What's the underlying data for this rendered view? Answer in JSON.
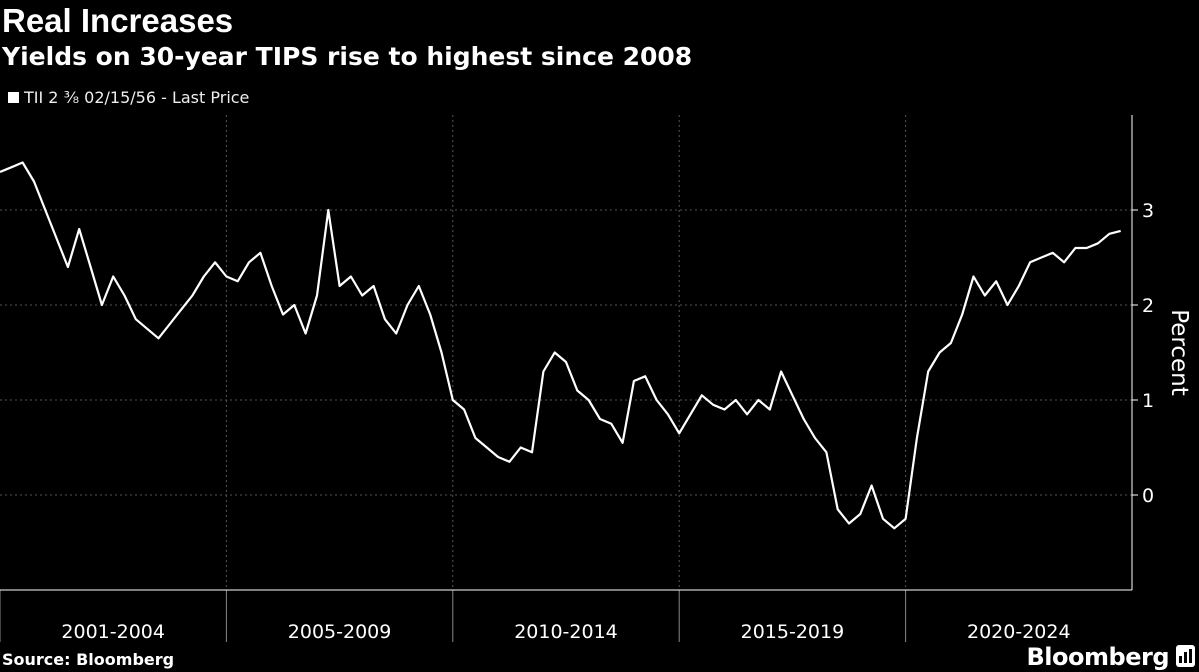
{
  "chart_data": {
    "type": "line",
    "title": "Real Increases",
    "subtitle": "Yields on 30-year TIPS rise to highest since 2008",
    "legend": [
      {
        "name": "TII 2 ³⁄₈ 02/15/56 - Last Price",
        "color": "#ffffff"
      }
    ],
    "ylabel": "Percent",
    "ylim": [
      -1,
      4
    ],
    "yticks": [
      0,
      1,
      2,
      3
    ],
    "xlim": [
      2001.0,
      2026.0
    ],
    "x_categories": [
      {
        "label": "2001-2004",
        "start": 2001,
        "end": 2006
      },
      {
        "label": "2005-2009",
        "start": 2006,
        "end": 2011
      },
      {
        "label": "2010-2014",
        "start": 2011,
        "end": 2016
      },
      {
        "label": "2015-2019",
        "start": 2016,
        "end": 2021
      },
      {
        "label": "2020-2024",
        "start": 2021,
        "end": 2026
      }
    ],
    "grid": true,
    "legend_position": "top-left",
    "series": [
      {
        "name": "TII 2 ³⁄₈ 02/15/56 - Last Price",
        "color": "#ffffff",
        "x": [
          2001.0,
          2001.25,
          2001.5,
          2001.75,
          2002.0,
          2002.25,
          2002.5,
          2002.75,
          2003.0,
          2003.25,
          2003.5,
          2003.75,
          2004.0,
          2004.25,
          2004.5,
          2004.75,
          2005.0,
          2005.25,
          2005.5,
          2005.75,
          2006.0,
          2006.25,
          2006.5,
          2006.75,
          2007.0,
          2007.25,
          2007.5,
          2007.75,
          2008.0,
          2008.25,
          2008.5,
          2008.75,
          2009.0,
          2009.25,
          2009.5,
          2009.75,
          2010.0,
          2010.25,
          2010.5,
          2010.75,
          2011.0,
          2011.25,
          2011.5,
          2011.75,
          2012.0,
          2012.25,
          2012.5,
          2012.75,
          2013.0,
          2013.25,
          2013.5,
          2013.75,
          2014.0,
          2014.25,
          2014.5,
          2014.75,
          2015.0,
          2015.25,
          2015.5,
          2015.75,
          2016.0,
          2016.25,
          2016.5,
          2016.75,
          2017.0,
          2017.25,
          2017.5,
          2017.75,
          2018.0,
          2018.25,
          2018.5,
          2018.75,
          2019.0,
          2019.25,
          2019.5,
          2019.75,
          2020.0,
          2020.25,
          2020.5,
          2020.75,
          2021.0,
          2021.25,
          2021.5,
          2021.75,
          2022.0,
          2022.25,
          2022.5,
          2022.75,
          2023.0,
          2023.25,
          2023.5,
          2023.75,
          2024.0,
          2024.25,
          2024.5,
          2024.75,
          2025.0,
          2025.25,
          2025.5,
          2025.75
        ],
        "values": [
          3.4,
          3.45,
          3.5,
          3.3,
          3.0,
          2.7,
          2.4,
          2.8,
          2.4,
          2.0,
          2.3,
          2.1,
          1.85,
          1.75,
          1.65,
          1.8,
          1.95,
          2.1,
          2.3,
          2.45,
          2.3,
          2.25,
          2.45,
          2.55,
          2.2,
          1.9,
          2.0,
          1.7,
          2.1,
          3.0,
          2.2,
          2.3,
          2.1,
          2.2,
          1.85,
          1.7,
          2.0,
          2.2,
          1.9,
          1.5,
          1.0,
          0.9,
          0.6,
          0.5,
          0.4,
          0.35,
          0.5,
          0.45,
          1.3,
          1.5,
          1.4,
          1.1,
          1.0,
          0.8,
          0.75,
          0.55,
          1.2,
          1.25,
          1.0,
          0.85,
          0.65,
          0.85,
          1.05,
          0.95,
          0.9,
          1.0,
          0.85,
          1.0,
          0.9,
          1.3,
          1.05,
          0.8,
          0.6,
          0.45,
          -0.15,
          -0.3,
          -0.2,
          0.1,
          -0.25,
          -0.35,
          -0.25,
          0.6,
          1.3,
          1.5,
          1.6,
          1.9,
          2.3,
          2.1,
          2.25,
          2.0,
          2.2,
          2.45,
          2.5,
          2.55,
          2.45,
          2.6,
          2.6,
          2.65,
          2.75,
          2.78
        ]
      }
    ]
  },
  "source": "Source: Bloomberg",
  "logo": "Bloomberg"
}
